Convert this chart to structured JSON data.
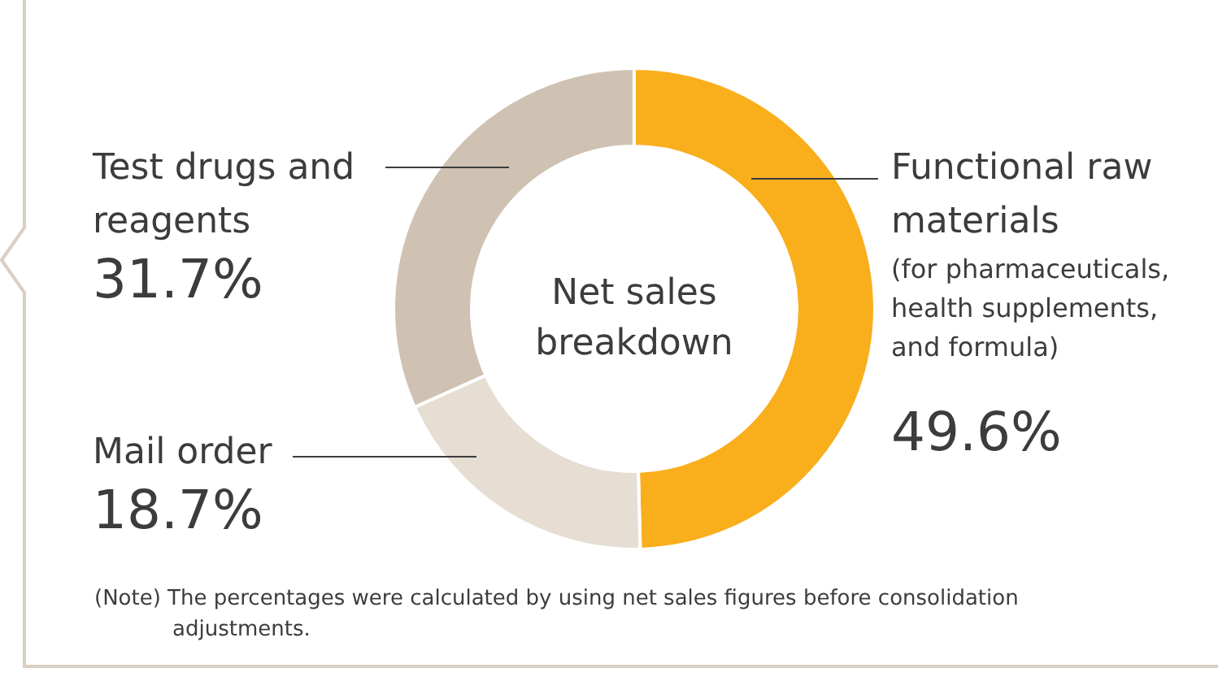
{
  "chart_data": {
    "type": "donut",
    "title": "Net sales breakdown",
    "categories": [
      "Functional raw materials",
      "Mail order",
      "Test drugs and reagents"
    ],
    "values": [
      49.6,
      18.7,
      31.7
    ],
    "colors": [
      "#f9ae1c",
      "#e6ded3",
      "#cfc2b2"
    ],
    "value_labels": [
      "49.6%",
      "18.7%",
      "31.7%"
    ],
    "annotations": [
      "(for pharmaceuticals, health supplements, and formula)",
      "(Note) The percentages were calculated by using net sales figures before consolidation adjustments."
    ]
  }
}
